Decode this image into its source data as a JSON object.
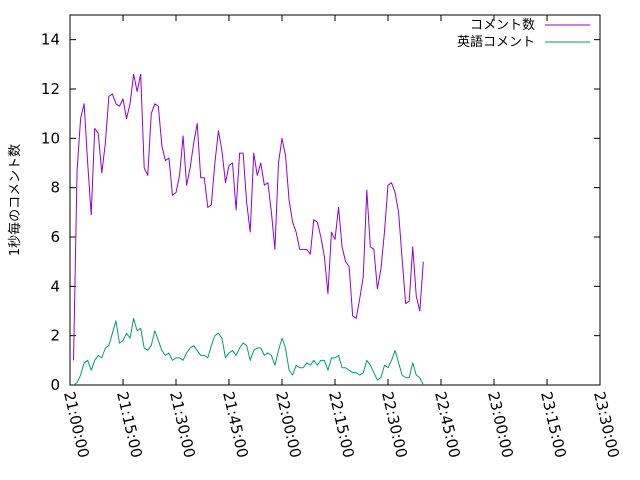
{
  "chart_data": {
    "type": "line",
    "title": "",
    "xlabel": "",
    "ylabel": "1秒毎のコメント数",
    "x_tick_labels": [
      "21:00:00",
      "21:15:00",
      "21:30:00",
      "21:45:00",
      "22:00:00",
      "22:15:00",
      "22:30:00",
      "22:45:00",
      "23:00:00",
      "23:15:00",
      "23:30:00"
    ],
    "xlim": [
      "21:00:00",
      "23:30:00"
    ],
    "x_step_minutes": 1,
    "y_ticks": [
      0,
      2,
      4,
      6,
      8,
      10,
      12,
      14
    ],
    "ylim": [
      0,
      15
    ],
    "grid": false,
    "legend_position": "top-right",
    "series": [
      {
        "name": "コメント数",
        "color": "#9400d3",
        "values": [
          1.0,
          8.7,
          10.8,
          11.4,
          9.0,
          6.9,
          10.4,
          10.2,
          8.6,
          9.8,
          11.7,
          11.8,
          11.4,
          11.3,
          11.6,
          10.8,
          11.4,
          12.6,
          11.9,
          12.6,
          8.8,
          8.5,
          11.0,
          11.4,
          11.3,
          9.7,
          9.1,
          9.2,
          7.7,
          7.8,
          8.5,
          10.1,
          8.1,
          8.8,
          9.8,
          10.6,
          8.4,
          8.4,
          7.2,
          7.3,
          9.0,
          10.3,
          9.5,
          8.2,
          8.9,
          9.0,
          7.1,
          9.4,
          9.4,
          7.4,
          6.2,
          9.4,
          8.5,
          9.0,
          8.1,
          8.2,
          7.0,
          5.5,
          9.0,
          10.0,
          9.3,
          7.5,
          6.6,
          6.2,
          5.5,
          5.5,
          5.5,
          5.3,
          6.7,
          6.6,
          6.0,
          5.2,
          3.7,
          6.2,
          5.9,
          7.2,
          5.6,
          5.0,
          4.8,
          2.8,
          2.7,
          3.5,
          4.4,
          7.9,
          5.6,
          5.5,
          3.9,
          4.7,
          6.2,
          8.1,
          8.2,
          7.8,
          7.0,
          5.1,
          3.3,
          3.4,
          5.6,
          3.6,
          3.0,
          5.0
        ]
      },
      {
        "name": "英語コメント",
        "color": "#009e73",
        "values": [
          0.0,
          0.1,
          0.4,
          0.9,
          1.0,
          0.6,
          1.0,
          1.2,
          1.1,
          1.5,
          1.6,
          2.1,
          2.6,
          1.7,
          1.8,
          2.1,
          1.9,
          2.7,
          2.2,
          2.3,
          1.5,
          1.4,
          1.6,
          2.2,
          1.8,
          1.4,
          1.2,
          1.3,
          1.0,
          1.1,
          1.1,
          1.0,
          1.3,
          1.5,
          1.6,
          1.4,
          1.2,
          1.2,
          1.1,
          1.6,
          2.0,
          2.1,
          1.9,
          1.1,
          1.3,
          1.4,
          1.2,
          1.5,
          1.7,
          1.6,
          1.0,
          1.4,
          1.5,
          1.5,
          1.2,
          1.3,
          1.2,
          0.8,
          1.4,
          1.9,
          1.5,
          0.6,
          0.4,
          0.8,
          0.7,
          0.7,
          0.9,
          0.8,
          1.0,
          0.8,
          1.0,
          1.0,
          0.6,
          1.1,
          1.1,
          1.2,
          0.7,
          0.7,
          0.6,
          0.5,
          0.5,
          0.4,
          0.5,
          1.0,
          0.8,
          0.5,
          0.2,
          0.3,
          0.8,
          0.7,
          1.0,
          1.4,
          0.9,
          0.4,
          0.3,
          0.3,
          0.9,
          0.4,
          0.3,
          0.0
        ]
      }
    ]
  }
}
